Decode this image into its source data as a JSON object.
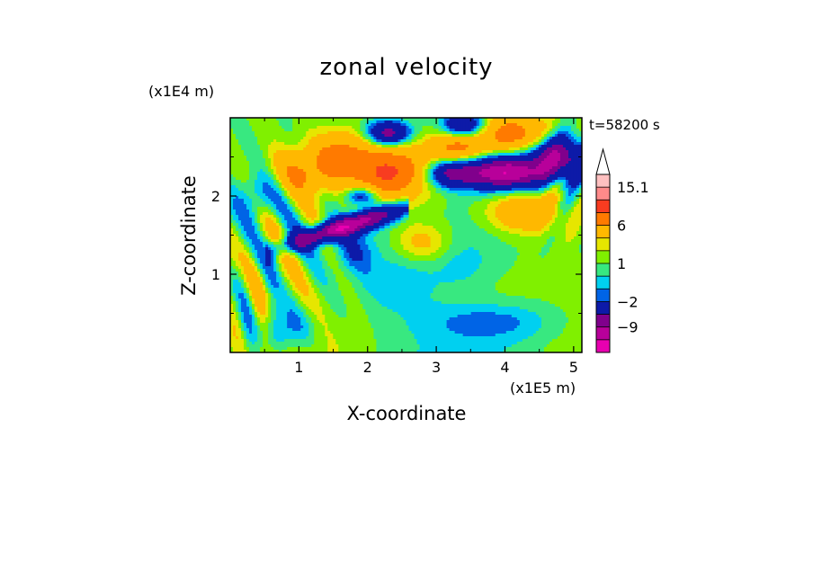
{
  "chart_data": {
    "type": "heatmap",
    "title": "zonal velocity",
    "xlabel": "X-coordinate",
    "ylabel": "Z-coordinate",
    "x_unit": "(x1E5 m)",
    "y_unit": "(x1E4 m)",
    "time_label": "t=58200 s",
    "xlim": [
      0,
      5.12
    ],
    "ylim": [
      0,
      3.0
    ],
    "x_ticks": [
      1,
      2,
      3,
      4,
      5
    ],
    "y_ticks": [
      1,
      2
    ],
    "colorbar": {
      "levels": [
        -15,
        -12,
        -9,
        -6,
        -2,
        -1,
        0,
        1,
        2,
        3,
        6,
        9,
        12,
        15.1
      ],
      "colors": [
        "#e800b0",
        "#b8009a",
        "#80008c",
        "#0d1aa8",
        "#0064e6",
        "#00d0f0",
        "#38e880",
        "#80f000",
        "#e6e600",
        "#ffb800",
        "#ff7a00",
        "#f83c20",
        "#ff8a8a",
        "#ffc0c0"
      ],
      "extend_color": "#ffffff",
      "tick_labels": [
        {
          "value": 15.1,
          "label": "15.1"
        },
        {
          "value": 6,
          "label": "6"
        },
        {
          "value": 1,
          "label": "1"
        },
        {
          "value": -2,
          "label": "−2"
        },
        {
          "value": -9,
          "label": "−9"
        }
      ]
    }
  }
}
